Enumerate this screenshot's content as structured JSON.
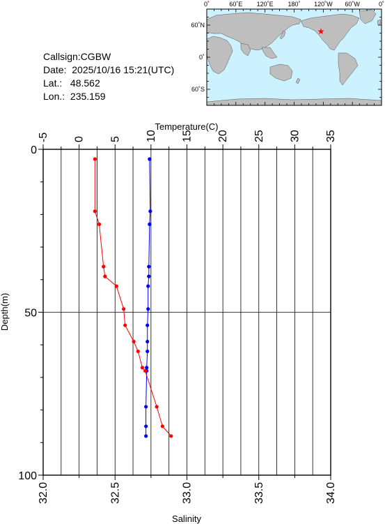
{
  "info": {
    "callsign": "Callsign:CGBW",
    "date": "Date:  2025/10/16 15:21(UTC)",
    "lat": "Lat.:   48.562",
    "lon": "Lon.:  235.159"
  },
  "map": {
    "lon_labels": [
      "0˚",
      "60˚E",
      "120˚E",
      "180˚",
      "120˚W",
      "60˚W",
      "0˚"
    ],
    "lat_labels": [
      "60˚N",
      "0˚",
      "60˚S"
    ],
    "marker_lon": 235.159,
    "marker_lat": 48.562,
    "ocean_color": "#ccf2ff",
    "land_color": "#bebebe",
    "marker_color": "#ff0000"
  },
  "chart_data": {
    "type": "line",
    "depth_axis": {
      "label": "Depth(m)",
      "range": [
        0,
        100
      ],
      "ticks": [
        "0",
        "50",
        "100"
      ]
    },
    "temperature_axis": {
      "label": "Temperature(C)",
      "range": [
        -5,
        35
      ],
      "ticks": [
        "-5",
        "0",
        "5",
        "10",
        "15",
        "20",
        "25",
        "30",
        "35"
      ]
    },
    "salinity_axis": {
      "label": "Salinity",
      "range": [
        32.0,
        34.0
      ],
      "ticks": [
        "32.0",
        "32.5",
        "33.0",
        "33.5",
        "34.0"
      ]
    },
    "grid": true,
    "series": [
      {
        "variable": "temperature",
        "color": "#0000ff",
        "points": [
          {
            "depth": 3,
            "value": 9.8
          },
          {
            "depth": 19,
            "value": 9.9
          },
          {
            "depth": 23,
            "value": 9.8
          },
          {
            "depth": 36,
            "value": 9.7
          },
          {
            "depth": 39,
            "value": 9.7
          },
          {
            "depth": 42,
            "value": 9.6
          },
          {
            "depth": 49,
            "value": 9.6
          },
          {
            "depth": 54,
            "value": 9.5
          },
          {
            "depth": 59,
            "value": 9.5
          },
          {
            "depth": 62,
            "value": 9.5
          },
          {
            "depth": 67,
            "value": 9.4
          },
          {
            "depth": 68,
            "value": 9.4
          },
          {
            "depth": 79,
            "value": 9.3
          },
          {
            "depth": 85,
            "value": 9.3
          },
          {
            "depth": 88,
            "value": 9.3
          }
        ]
      },
      {
        "variable": "salinity",
        "color": "#ff0000",
        "points": [
          {
            "depth": 3,
            "value": 32.36
          },
          {
            "depth": 19,
            "value": 32.36
          },
          {
            "depth": 23,
            "value": 32.39
          },
          {
            "depth": 36,
            "value": 32.42
          },
          {
            "depth": 39,
            "value": 32.43
          },
          {
            "depth": 42,
            "value": 32.51
          },
          {
            "depth": 49,
            "value": 32.56
          },
          {
            "depth": 54,
            "value": 32.57
          },
          {
            "depth": 59,
            "value": 32.63
          },
          {
            "depth": 62,
            "value": 32.66
          },
          {
            "depth": 67,
            "value": 32.69
          },
          {
            "depth": 68,
            "value": 32.71
          },
          {
            "depth": 79,
            "value": 32.79
          },
          {
            "depth": 85,
            "value": 32.83
          },
          {
            "depth": 88,
            "value": 32.89
          }
        ]
      }
    ]
  }
}
